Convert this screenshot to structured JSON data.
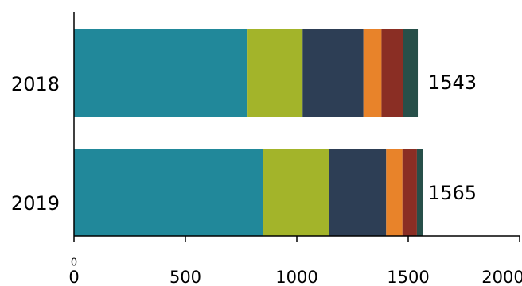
{
  "chart_data": {
    "type": "stacked_barh",
    "categories": [
      "2018",
      "2019"
    ],
    "series": [
      {
        "color": "#21889a",
        "values": [
          779,
          848
        ]
      },
      {
        "color": "#a3b42a",
        "values": [
          247,
          295
        ]
      },
      {
        "color": "#2d3e55",
        "values": [
          273,
          258
        ]
      },
      {
        "color": "#e8832a",
        "values": [
          81,
          73
        ]
      },
      {
        "color": "#8a2e24",
        "values": [
          98,
          65
        ]
      },
      {
        "color": "#274f49",
        "values": [
          65,
          26
        ]
      }
    ],
    "totals": [
      1543,
      1565
    ],
    "annotation": "0",
    "xlim": [
      0,
      2000
    ],
    "xticks": [
      0,
      500,
      1000,
      1500,
      2000
    ]
  }
}
